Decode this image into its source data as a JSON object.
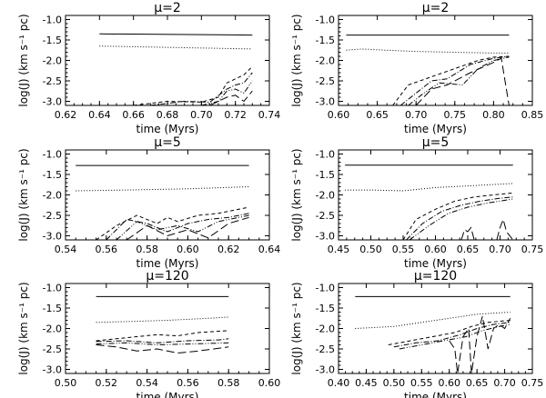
{
  "chart_data": [
    {
      "type": "line",
      "title": "μ=2",
      "xlabel": "time (Myrs)",
      "ylabel": "log(J) (km s⁻¹ pc)",
      "xlim": [
        0.62,
        0.74
      ],
      "ylim": [
        -3.1,
        -0.9
      ],
      "x_ticks": [
        "0.62",
        "0.64",
        "0.66",
        "0.68",
        "0.70",
        "0.72",
        "0.74"
      ],
      "y_ticks": [
        "-1.0",
        "-1.5",
        "-2.0",
        "-2.5",
        "-3.0"
      ],
      "series": [
        {
          "name": "solid",
          "style": "solid",
          "x": [
            0.64,
            0.73
          ],
          "y": [
            -1.35,
            -1.38
          ]
        },
        {
          "name": "dotted",
          "style": "dotted",
          "x": [
            0.64,
            0.73
          ],
          "y": [
            -1.65,
            -1.72
          ]
        },
        {
          "name": "dashed",
          "style": "dashed",
          "x": [
            0.66,
            0.68,
            0.7,
            0.71,
            0.715,
            0.72,
            0.725,
            0.73
          ],
          "y": [
            -3.1,
            -3.0,
            -3.02,
            -2.9,
            -2.55,
            -2.45,
            -2.35,
            -2.15
          ]
        },
        {
          "name": "dash-dot",
          "style": "dashdot",
          "x": [
            0.67,
            0.69,
            0.705,
            0.715,
            0.72,
            0.725,
            0.73
          ],
          "y": [
            -3.1,
            -3.0,
            -3.02,
            -2.7,
            -2.6,
            -2.55,
            -2.3
          ]
        },
        {
          "name": "dash-dot-dot",
          "style": "dashdotdot",
          "x": [
            0.7,
            0.71,
            0.715,
            0.72,
            0.725,
            0.73
          ],
          "y": [
            -3.1,
            -3.0,
            -2.75,
            -2.7,
            -2.8,
            -2.5
          ]
        },
        {
          "name": "long-dash",
          "style": "longdash",
          "x": [
            0.705,
            0.715,
            0.72,
            0.725,
            0.73
          ],
          "y": [
            -3.1,
            -2.9,
            -2.85,
            -3.0,
            -2.75
          ]
        }
      ]
    },
    {
      "type": "line",
      "title": "μ=2",
      "xlabel": "time (Myrs)",
      "ylabel": "log(J) (km s⁻¹ pc)",
      "xlim": [
        0.6,
        0.85
      ],
      "ylim": [
        -3.1,
        -0.9
      ],
      "x_ticks": [
        "0.60",
        "0.65",
        "0.70",
        "0.75",
        "0.80",
        "0.85"
      ],
      "y_ticks": [
        "-1.0",
        "-1.5",
        "-2.0",
        "-2.5",
        "-3.0"
      ],
      "series": [
        {
          "name": "solid",
          "style": "solid",
          "x": [
            0.61,
            0.82
          ],
          "y": [
            -1.38,
            -1.38
          ]
        },
        {
          "name": "dotted",
          "style": "dotted",
          "x": [
            0.61,
            0.63,
            0.66,
            0.7,
            0.75,
            0.8,
            0.82
          ],
          "y": [
            -1.75,
            -1.72,
            -1.75,
            -1.78,
            -1.8,
            -1.82,
            -1.82
          ]
        },
        {
          "name": "dashed",
          "style": "dashed",
          "x": [
            0.67,
            0.69,
            0.72,
            0.75,
            0.78,
            0.8,
            0.82
          ],
          "y": [
            -3.1,
            -2.6,
            -2.4,
            -2.2,
            -2.0,
            -1.92,
            -1.9
          ]
        },
        {
          "name": "dash-dot",
          "style": "dashdot",
          "x": [
            0.68,
            0.7,
            0.72,
            0.74,
            0.77,
            0.8,
            0.82
          ],
          "y": [
            -3.1,
            -2.8,
            -2.5,
            -2.45,
            -2.1,
            -1.95,
            -1.9
          ]
        },
        {
          "name": "dash-dot-dot",
          "style": "dashdotdot",
          "x": [
            0.69,
            0.71,
            0.73,
            0.76,
            0.78,
            0.8,
            0.82
          ],
          "y": [
            -3.1,
            -2.8,
            -2.55,
            -2.6,
            -2.2,
            -2.0,
            -1.92
          ]
        },
        {
          "name": "long-dash",
          "style": "longdash",
          "x": [
            0.7,
            0.72,
            0.74,
            0.77,
            0.8,
            0.81,
            0.82
          ],
          "y": [
            -3.1,
            -2.7,
            -2.6,
            -2.3,
            -2.05,
            -1.95,
            -3.1
          ]
        }
      ]
    },
    {
      "type": "line",
      "title": "μ=5",
      "xlabel": "time (Myrs)",
      "ylabel": "log(J) (km s⁻¹ pc)",
      "xlim": [
        0.54,
        0.64
      ],
      "ylim": [
        -3.1,
        -0.9
      ],
      "x_ticks": [
        "0.54",
        "0.56",
        "0.58",
        "0.60",
        "0.62",
        "0.64"
      ],
      "y_ticks": [
        "-1.0",
        "-1.5",
        "-2.0",
        "-2.5",
        "-3.0"
      ],
      "series": [
        {
          "name": "solid",
          "style": "solid",
          "x": [
            0.545,
            0.63
          ],
          "y": [
            -1.28,
            -1.28
          ]
        },
        {
          "name": "dotted",
          "style": "dotted",
          "x": [
            0.545,
            0.57,
            0.6,
            0.63
          ],
          "y": [
            -1.9,
            -1.88,
            -1.85,
            -1.8
          ]
        },
        {
          "name": "dashed",
          "style": "dashed",
          "x": [
            0.555,
            0.565,
            0.575,
            0.585,
            0.59,
            0.595,
            0.605,
            0.615,
            0.625,
            0.63
          ],
          "y": [
            -3.1,
            -2.75,
            -2.5,
            -2.7,
            -2.55,
            -2.65,
            -2.5,
            -2.45,
            -2.35,
            -2.3
          ]
        },
        {
          "name": "dash-dot",
          "style": "dashdot",
          "x": [
            0.56,
            0.57,
            0.58,
            0.59,
            0.6,
            0.61,
            0.62,
            0.63
          ],
          "y": [
            -3.1,
            -2.6,
            -2.7,
            -2.9,
            -2.7,
            -2.6,
            -2.55,
            -2.45
          ]
        },
        {
          "name": "dash-dot-dot",
          "style": "dashdotdot",
          "x": [
            0.565,
            0.575,
            0.585,
            0.595,
            0.605,
            0.615,
            0.625,
            0.63
          ],
          "y": [
            -3.1,
            -2.65,
            -2.85,
            -2.75,
            -2.9,
            -2.65,
            -2.55,
            -2.5
          ]
        },
        {
          "name": "long-dash",
          "style": "longdash",
          "x": [
            0.57,
            0.58,
            0.59,
            0.6,
            0.61,
            0.62,
            0.63
          ],
          "y": [
            -3.1,
            -2.75,
            -3.0,
            -2.85,
            -3.05,
            -2.7,
            -2.55
          ]
        }
      ]
    },
    {
      "type": "line",
      "title": "μ=5",
      "xlabel": "time (Myrs)",
      "ylabel": "log(J) (km s⁻¹ pc)",
      "xlim": [
        0.45,
        0.75
      ],
      "ylim": [
        -3.1,
        -0.9
      ],
      "x_ticks": [
        "0.45",
        "0.50",
        "0.55",
        "0.60",
        "0.65",
        "0.70",
        "0.75"
      ],
      "y_ticks": [
        "-1.0",
        "-1.5",
        "-2.0",
        "-2.5",
        "-3.0"
      ],
      "series": [
        {
          "name": "solid",
          "style": "solid",
          "x": [
            0.46,
            0.72
          ],
          "y": [
            -1.27,
            -1.27
          ]
        },
        {
          "name": "dotted",
          "style": "dotted",
          "x": [
            0.46,
            0.5,
            0.55,
            0.6,
            0.65,
            0.72
          ],
          "y": [
            -1.88,
            -1.88,
            -1.9,
            -1.82,
            -1.78,
            -1.72
          ]
        },
        {
          "name": "dashed",
          "style": "dashed",
          "x": [
            0.55,
            0.57,
            0.6,
            0.63,
            0.66,
            0.69,
            0.72
          ],
          "y": [
            -3.1,
            -2.6,
            -2.35,
            -2.15,
            -2.05,
            -2.0,
            -1.95
          ]
        },
        {
          "name": "dash-dot",
          "style": "dashdot",
          "x": [
            0.555,
            0.58,
            0.61,
            0.64,
            0.67,
            0.7,
            0.72
          ],
          "y": [
            -3.1,
            -2.7,
            -2.4,
            -2.25,
            -2.15,
            -2.08,
            -2.05
          ]
        },
        {
          "name": "dash-dot-dot",
          "style": "dashdotdot",
          "x": [
            0.56,
            0.59,
            0.62,
            0.65,
            0.68,
            0.72
          ],
          "y": [
            -3.1,
            -2.75,
            -2.45,
            -2.3,
            -2.2,
            -2.1
          ]
        },
        {
          "name": "long-dash",
          "style": "longdash",
          "x": [
            0.64,
            0.645,
            0.65,
            0.655,
            0.66
          ],
          "y": [
            -3.1,
            -2.85,
            -2.9,
            -2.8,
            -3.1
          ]
        },
        {
          "name": "long-dash-2",
          "style": "longdash",
          "x": [
            0.695,
            0.7,
            0.705,
            0.71,
            0.72
          ],
          "y": [
            -3.1,
            -2.8,
            -2.6,
            -2.9,
            -3.1
          ]
        }
      ]
    },
    {
      "type": "line",
      "title": "μ=120",
      "xlabel": "time (Myrs)",
      "ylabel": "log(J) (km s⁻¹ pc)",
      "xlim": [
        0.5,
        0.6
      ],
      "ylim": [
        -3.1,
        -0.9
      ],
      "x_ticks": [
        "0.50",
        "0.52",
        "0.54",
        "0.56",
        "0.58",
        "0.60"
      ],
      "y_ticks": [
        "-1.0",
        "-1.5",
        "-2.0",
        "-2.5",
        "-3.0"
      ],
      "series": [
        {
          "name": "solid",
          "style": "solid",
          "x": [
            0.515,
            0.58
          ],
          "y": [
            -1.22,
            -1.22
          ]
        },
        {
          "name": "dotted",
          "style": "dotted",
          "x": [
            0.515,
            0.53,
            0.55,
            0.57,
            0.58
          ],
          "y": [
            -1.85,
            -1.83,
            -1.8,
            -1.75,
            -1.72
          ]
        },
        {
          "name": "dashed",
          "style": "dashed",
          "x": [
            0.515,
            0.525,
            0.535,
            0.545,
            0.555,
            0.565,
            0.58
          ],
          "y": [
            -2.3,
            -2.25,
            -2.2,
            -2.15,
            -2.18,
            -2.1,
            -2.05
          ]
        },
        {
          "name": "dash-dot",
          "style": "dashdot",
          "x": [
            0.515,
            0.53,
            0.545,
            0.56,
            0.575,
            0.58
          ],
          "y": [
            -2.32,
            -2.3,
            -2.35,
            -2.3,
            -2.28,
            -2.25
          ]
        },
        {
          "name": "dash-dot-dot",
          "style": "dashdotdot",
          "x": [
            0.515,
            0.53,
            0.545,
            0.56,
            0.58
          ],
          "y": [
            -2.38,
            -2.35,
            -2.4,
            -2.38,
            -2.35
          ]
        },
        {
          "name": "long-dash",
          "style": "longdash",
          "x": [
            0.515,
            0.525,
            0.535,
            0.545,
            0.555,
            0.565,
            0.58
          ],
          "y": [
            -2.4,
            -2.45,
            -2.55,
            -2.5,
            -2.6,
            -2.55,
            -2.45
          ]
        }
      ]
    },
    {
      "type": "line",
      "title": "μ=120",
      "xlabel": "time (Myrs)",
      "ylabel": "log(J) (km s⁻¹ pc)",
      "xlim": [
        0.4,
        0.75
      ],
      "ylim": [
        -3.1,
        -0.9
      ],
      "x_ticks": [
        "0.40",
        "0.45",
        "0.50",
        "0.55",
        "0.60",
        "0.65",
        "0.70",
        "0.75"
      ],
      "y_ticks": [
        "-1.0",
        "-1.5",
        "-2.0",
        "-2.5",
        "-3.0"
      ],
      "series": [
        {
          "name": "solid",
          "style": "solid",
          "x": [
            0.43,
            0.71
          ],
          "y": [
            -1.22,
            -1.22
          ]
        },
        {
          "name": "dotted",
          "style": "dotted",
          "x": [
            0.43,
            0.5,
            0.55,
            0.6,
            0.65,
            0.71
          ],
          "y": [
            -2.0,
            -1.95,
            -1.85,
            -1.75,
            -1.65,
            -1.6
          ]
        },
        {
          "name": "dashed",
          "style": "dashed",
          "x": [
            0.49,
            0.53,
            0.57,
            0.61,
            0.64,
            0.67,
            0.71
          ],
          "y": [
            -2.4,
            -2.3,
            -2.2,
            -2.1,
            -1.95,
            -1.85,
            -1.8
          ]
        },
        {
          "name": "dash-dot",
          "style": "dashdot",
          "x": [
            0.5,
            0.54,
            0.58,
            0.62,
            0.65,
            0.68,
            0.71
          ],
          "y": [
            -2.45,
            -2.35,
            -2.3,
            -2.15,
            -2.0,
            -1.9,
            -1.85
          ]
        },
        {
          "name": "dash-dot-dot",
          "style": "dashdotdot",
          "x": [
            0.51,
            0.55,
            0.59,
            0.63,
            0.66,
            0.69,
            0.71
          ],
          "y": [
            -2.5,
            -2.4,
            -2.3,
            -2.2,
            -2.05,
            -1.95,
            -1.9
          ]
        },
        {
          "name": "long-dash",
          "style": "longdash",
          "x": [
            0.6,
            0.61,
            0.615,
            0.625,
            0.635,
            0.64,
            0.65,
            0.66,
            0.67,
            0.68,
            0.69,
            0.7,
            0.71
          ],
          "y": [
            -2.3,
            -2.5,
            -3.1,
            -2.2,
            -2.0,
            -3.1,
            -2.2,
            -1.7,
            -2.5,
            -2.0,
            -1.9,
            -2.0,
            -1.75
          ]
        }
      ]
    }
  ]
}
